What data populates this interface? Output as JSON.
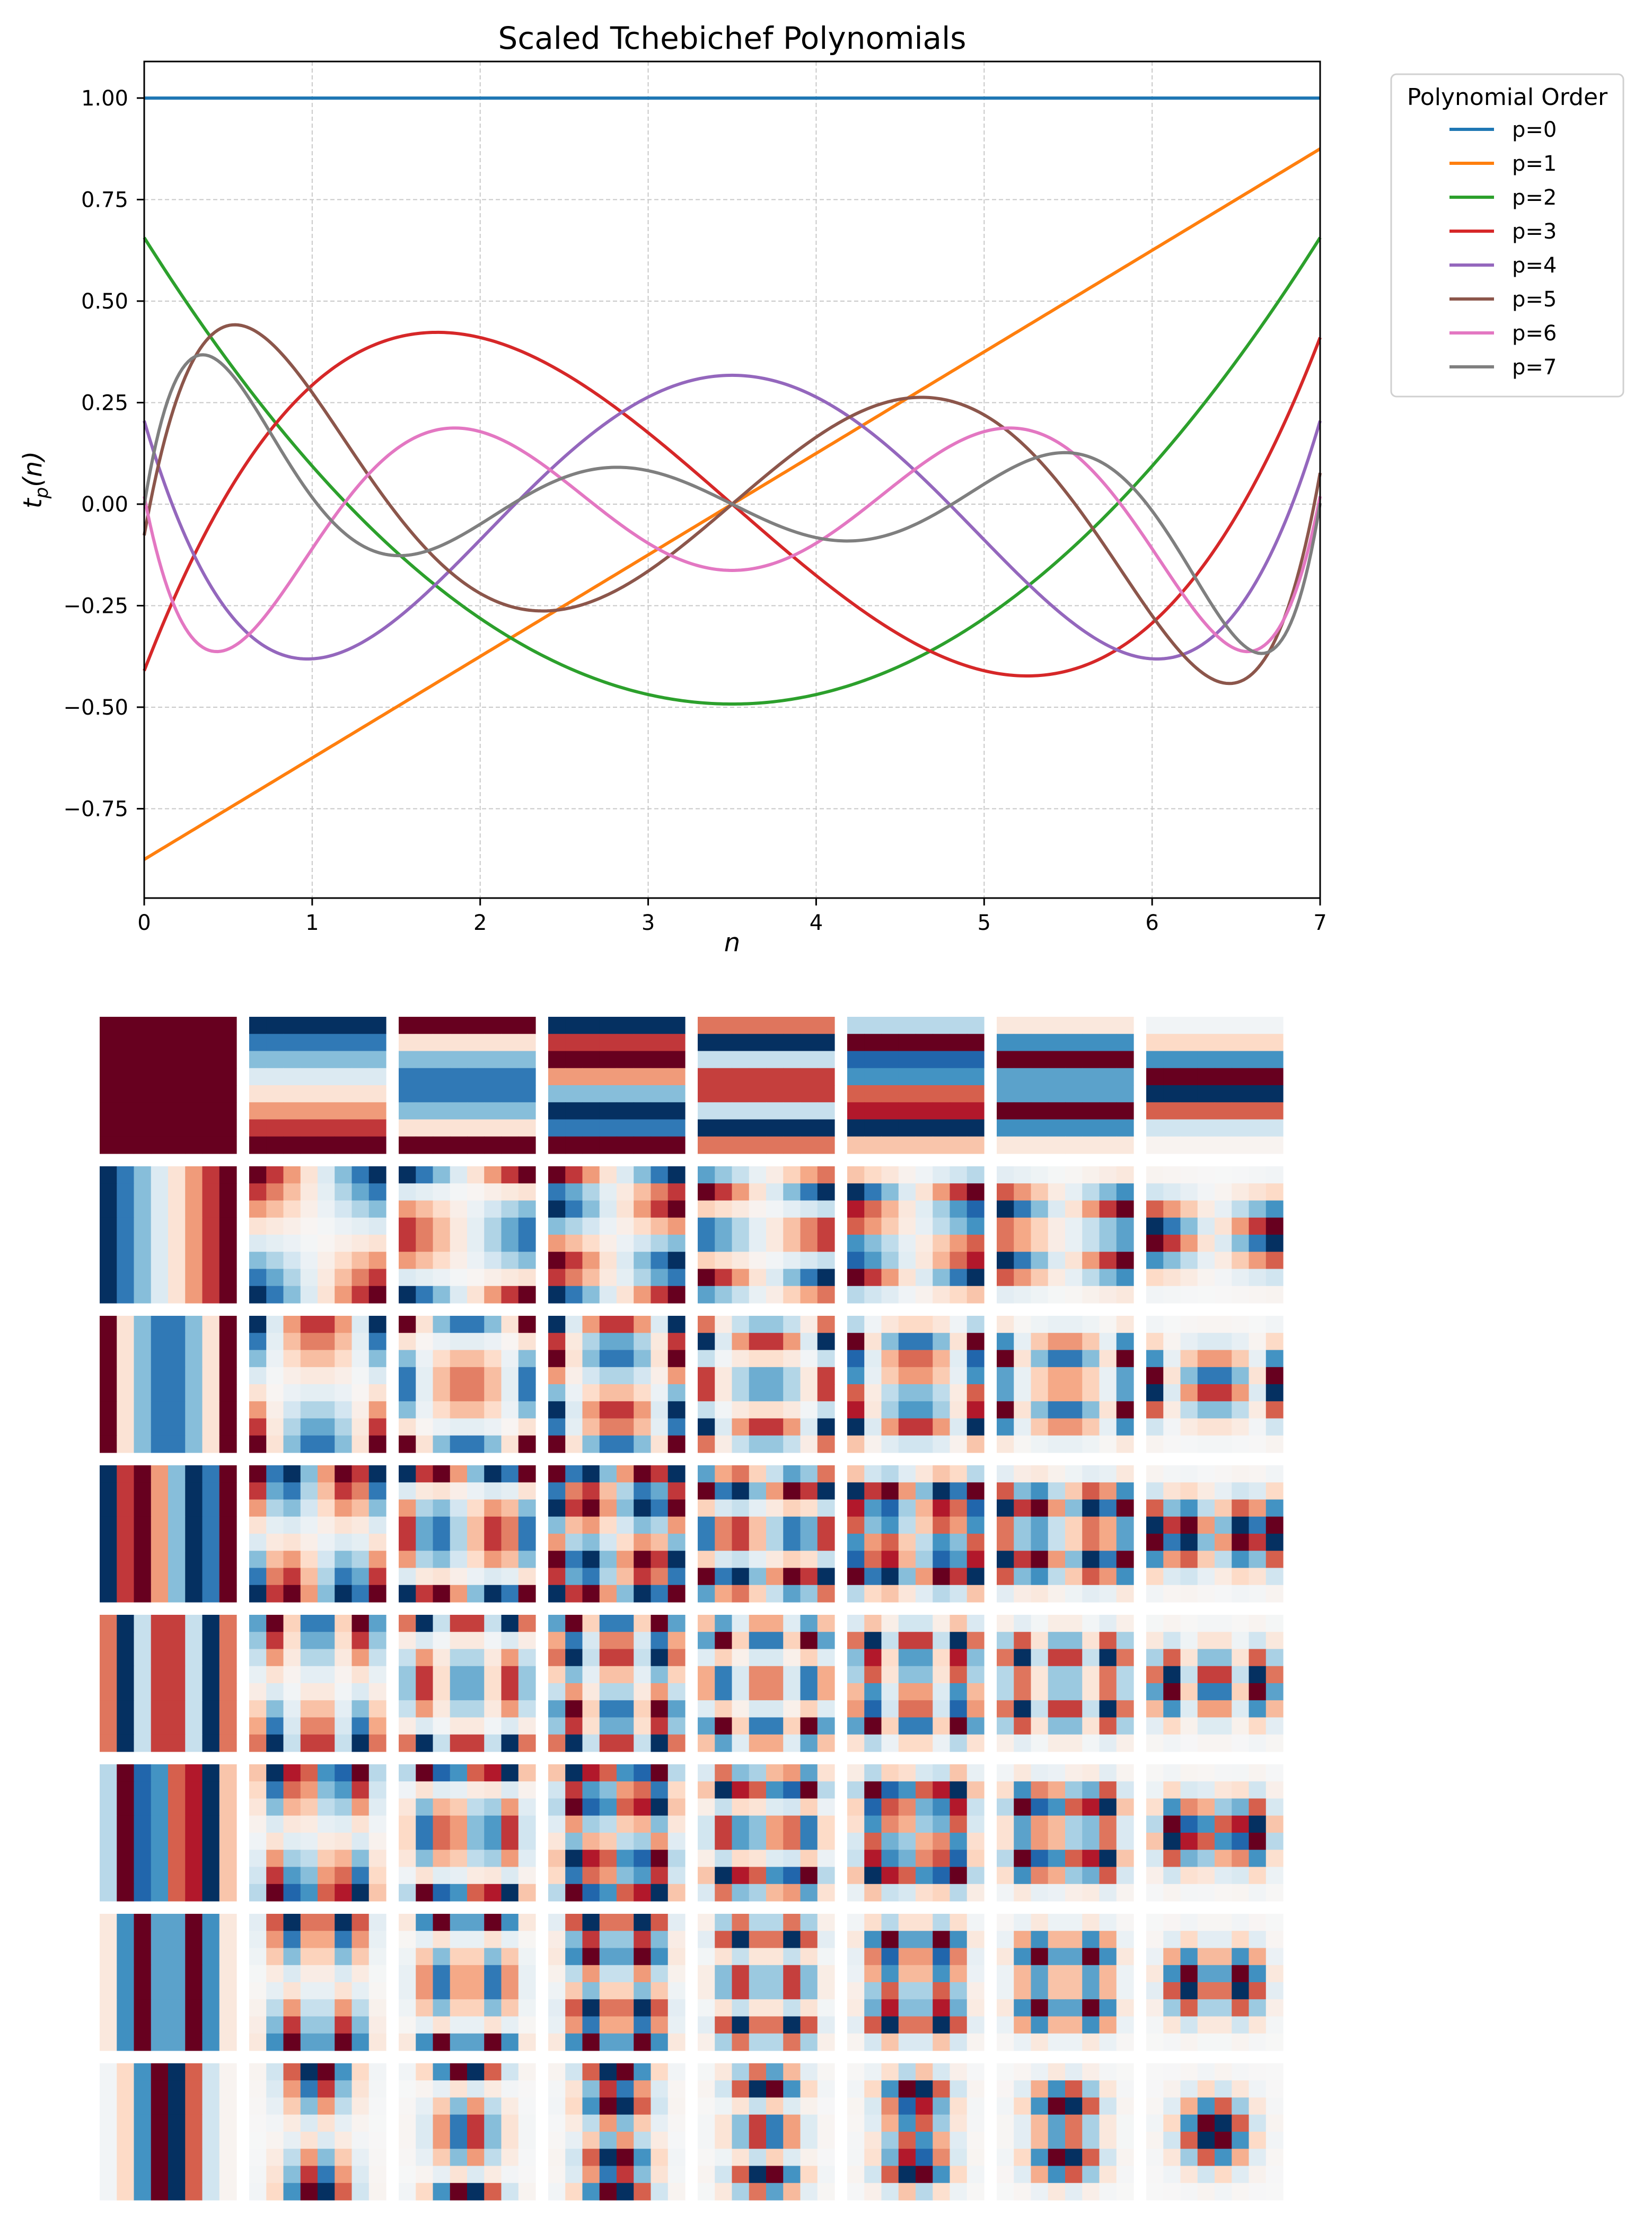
{
  "chart_data": [
    {
      "type": "line",
      "title": "Scaled Tchebichef Polynomials",
      "xlabel": "n",
      "ylabel": "t_p(n)",
      "xlim": [
        0,
        7
      ],
      "ylim": [
        -0.97,
        1.09
      ],
      "xticks": [
        0,
        1,
        2,
        3,
        4,
        5,
        6,
        7
      ],
      "xtick_labels": [
        "0",
        "1",
        "2",
        "3",
        "4",
        "5",
        "6",
        "7"
      ],
      "yticks": [
        -0.75,
        -0.5,
        -0.25,
        0.0,
        0.25,
        0.5,
        0.75,
        1.0
      ],
      "ytick_labels": [
        "−0.75",
        "−0.50",
        "−0.25",
        "0.00",
        "0.25",
        "0.50",
        "0.75",
        "1.00"
      ],
      "grid": true,
      "legend": {
        "title": "Polynomial Order",
        "placement": "outside upper-right"
      },
      "N": 8,
      "x": [
        0,
        1,
        2,
        3,
        4,
        5,
        6,
        7
      ],
      "series": [
        {
          "name": "p=0",
          "color": "#1f77b4",
          "values": [
            1.0,
            1.0,
            1.0,
            1.0,
            1.0,
            1.0,
            1.0,
            1.0
          ]
        },
        {
          "name": "p=1",
          "color": "#ff7f0e",
          "values": [
            -0.875,
            -0.625,
            -0.375,
            -0.125,
            0.125,
            0.375,
            0.625,
            0.875
          ]
        },
        {
          "name": "p=2",
          "color": "#2ca02c",
          "values": [
            0.6563,
            0.0938,
            -0.2813,
            -0.4688,
            -0.4688,
            -0.2813,
            0.0938,
            0.6563
          ]
        },
        {
          "name": "p=3",
          "color": "#d62728",
          "values": [
            -0.4102,
            0.293,
            0.4102,
            0.1758,
            -0.1758,
            -0.4102,
            -0.293,
            0.4102
          ]
        },
        {
          "name": "p=4",
          "color": "#9467bd",
          "values": [
            0.2051,
            -0.3809,
            -0.0879,
            0.2637,
            0.2637,
            -0.0879,
            -0.3809,
            0.2051
          ]
        },
        {
          "name": "p=5",
          "color": "#8c564b",
          "values": [
            -0.0769,
            0.2747,
            -0.2198,
            -0.1649,
            0.1649,
            0.2198,
            -0.2747,
            0.0769
          ]
        },
        {
          "name": "p=6",
          "color": "#e377c2",
          "values": [
            0.0192,
            -0.1099,
            0.1786,
            -0.0962,
            -0.0962,
            0.1786,
            -0.1099,
            0.0192
          ]
        },
        {
          "name": "p=7",
          "color": "#7f7f7f",
          "values": [
            -0.0024,
            0.0165,
            -0.0494,
            0.0824,
            -0.0824,
            0.0494,
            -0.0165,
            0.0024
          ]
        }
      ]
    },
    {
      "type": "heatmap",
      "title": "",
      "description_of_cells": "8x8 grid of 8x8 separable basis images t_p(x)*t_q(y), rows p=0..7, columns q=0..7",
      "rows": 8,
      "cols": 8,
      "tile_size": 8,
      "colormap": "RdBu_r",
      "colormap_stops": [
        "#053061",
        "#2166ac",
        "#4393c3",
        "#92c5de",
        "#d1e5f0",
        "#f7f7f7",
        "#fddbc7",
        "#f4a582",
        "#d6604d",
        "#b2182b",
        "#67001f"
      ]
    }
  ]
}
